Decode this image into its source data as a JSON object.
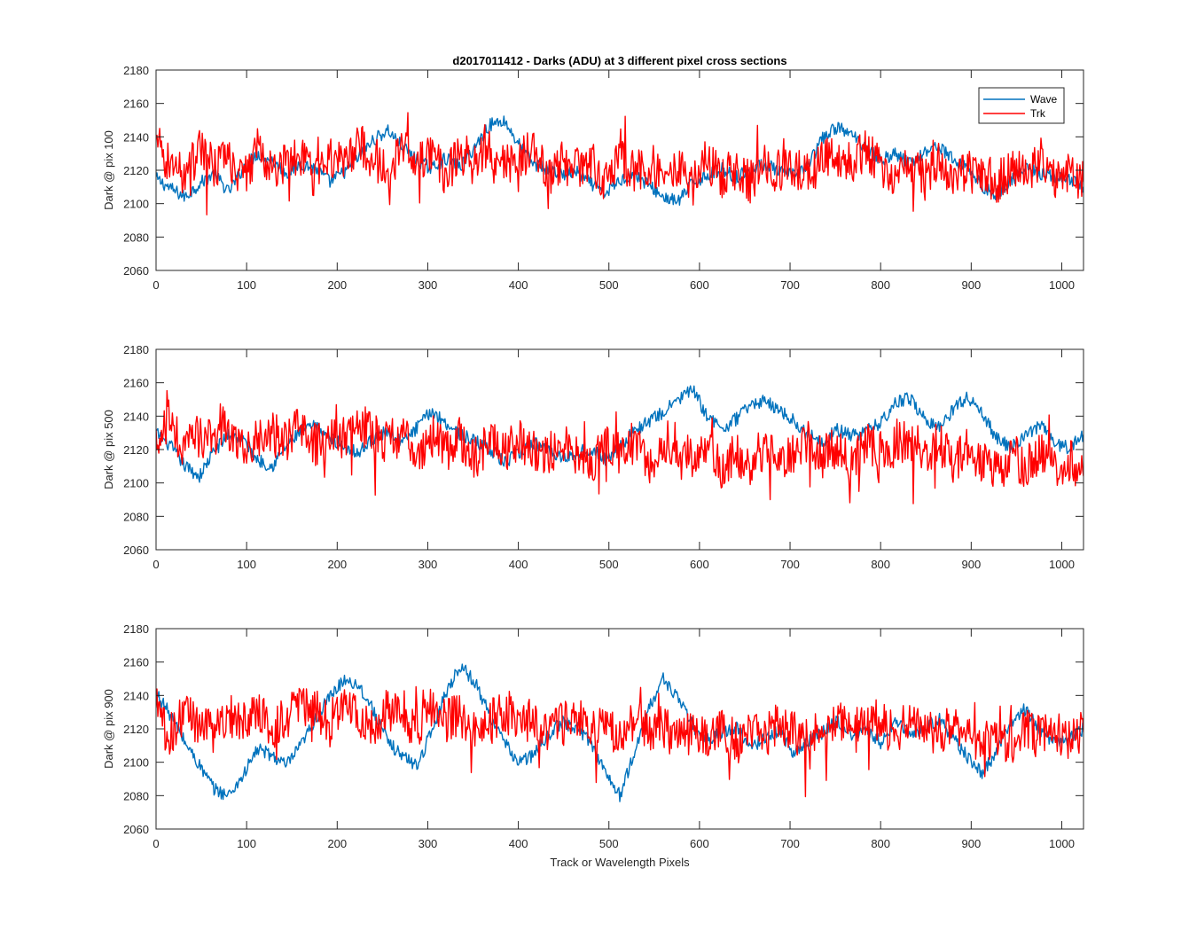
{
  "figure": {
    "title": "d2017011412 - Darks (ADU) at 3 different pixel cross sections",
    "xlabel": "Track or Wavelength Pixels"
  },
  "chart_data": [
    {
      "type": "line",
      "title": "d2017011412 - Darks (ADU) at 3 different pixel cross sections",
      "xlabel": "",
      "ylabel": "Dark @ pix 100",
      "xlim": [
        0,
        1024
      ],
      "ylim": [
        2060,
        2180
      ],
      "xticks": [
        0,
        100,
        200,
        300,
        400,
        500,
        600,
        700,
        800,
        900,
        1000
      ],
      "yticks": [
        2060,
        2080,
        2100,
        2120,
        2140,
        2160,
        2180
      ],
      "grid": false,
      "legend_position": "top-right",
      "series": [
        {
          "name": "Wave",
          "color": "#0072BD",
          "x": [
            0,
            16,
            32,
            48,
            64,
            80,
            96,
            112,
            128,
            144,
            160,
            176,
            192,
            208,
            224,
            240,
            256,
            272,
            288,
            304,
            320,
            336,
            352,
            368,
            384,
            400,
            416,
            432,
            448,
            464,
            480,
            496,
            512,
            528,
            544,
            560,
            576,
            592,
            608,
            624,
            640,
            656,
            672,
            688,
            704,
            720,
            736,
            752,
            768,
            784,
            800,
            816,
            832,
            848,
            864,
            880,
            896,
            912,
            928,
            944,
            960,
            976,
            992,
            1008,
            1024
          ],
          "values": [
            2115,
            2109,
            2104,
            2112,
            2118,
            2107,
            2121,
            2130,
            2126,
            2118,
            2124,
            2121,
            2113,
            2119,
            2128,
            2138,
            2144,
            2134,
            2126,
            2121,
            2127,
            2122,
            2134,
            2147,
            2150,
            2136,
            2124,
            2121,
            2117,
            2119,
            2112,
            2106,
            2114,
            2118,
            2111,
            2104,
            2101,
            2112,
            2117,
            2121,
            2116,
            2120,
            2124,
            2119,
            2117,
            2123,
            2139,
            2146,
            2141,
            2134,
            2126,
            2130,
            2124,
            2131,
            2135,
            2126,
            2122,
            2110,
            2105,
            2114,
            2121,
            2118,
            2116,
            2114,
            2110
          ]
        },
        {
          "name": "Trk",
          "color": "#FF0000",
          "x": [
            0,
            16,
            32,
            48,
            64,
            80,
            96,
            112,
            128,
            144,
            160,
            176,
            192,
            208,
            224,
            240,
            256,
            272,
            288,
            304,
            320,
            336,
            352,
            368,
            384,
            400,
            416,
            432,
            448,
            464,
            480,
            496,
            512,
            528,
            544,
            560,
            576,
            592,
            608,
            624,
            640,
            656,
            672,
            688,
            704,
            720,
            736,
            752,
            768,
            784,
            800,
            816,
            832,
            848,
            864,
            880,
            896,
            912,
            928,
            944,
            960,
            976,
            992,
            1008,
            1024
          ],
          "values": [
            2135,
            2124,
            2118,
            2132,
            2121,
            2127,
            2113,
            2134,
            2119,
            2125,
            2128,
            2114,
            2130,
            2122,
            2136,
            2127,
            2121,
            2133,
            2125,
            2130,
            2118,
            2129,
            2124,
            2136,
            2121,
            2128,
            2132,
            2117,
            2125,
            2120,
            2127,
            2114,
            2126,
            2119,
            2124,
            2118,
            2122,
            2111,
            2127,
            2116,
            2121,
            2113,
            2124,
            2119,
            2122,
            2117,
            2126,
            2129,
            2124,
            2132,
            2121,
            2118,
            2124,
            2116,
            2127,
            2113,
            2120,
            2117,
            2112,
            2121,
            2118,
            2123,
            2114,
            2120,
            2113
          ]
        }
      ]
    },
    {
      "type": "line",
      "title": "",
      "xlabel": "",
      "ylabel": "Dark @ pix 500",
      "xlim": [
        0,
        1024
      ],
      "ylim": [
        2060,
        2180
      ],
      "xticks": [
        0,
        100,
        200,
        300,
        400,
        500,
        600,
        700,
        800,
        900,
        1000
      ],
      "yticks": [
        2060,
        2080,
        2100,
        2120,
        2140,
        2160,
        2180
      ],
      "grid": false,
      "series": [
        {
          "name": "Wave",
          "color": "#0072BD",
          "x": [
            0,
            16,
            32,
            48,
            64,
            80,
            96,
            112,
            128,
            144,
            160,
            176,
            192,
            208,
            224,
            240,
            256,
            272,
            288,
            304,
            320,
            336,
            352,
            368,
            384,
            400,
            416,
            432,
            448,
            464,
            480,
            496,
            512,
            528,
            544,
            560,
            576,
            592,
            608,
            624,
            640,
            656,
            672,
            688,
            704,
            720,
            736,
            752,
            768,
            784,
            800,
            816,
            832,
            848,
            864,
            880,
            896,
            912,
            928,
            944,
            960,
            976,
            992,
            1008,
            1024
          ],
          "values": [
            2130,
            2122,
            2110,
            2104,
            2119,
            2129,
            2126,
            2114,
            2110,
            2122,
            2131,
            2134,
            2127,
            2122,
            2118,
            2127,
            2131,
            2124,
            2133,
            2143,
            2136,
            2129,
            2125,
            2121,
            2112,
            2117,
            2124,
            2121,
            2115,
            2118,
            2121,
            2114,
            2122,
            2131,
            2137,
            2142,
            2150,
            2156,
            2141,
            2132,
            2138,
            2147,
            2149,
            2144,
            2137,
            2129,
            2125,
            2132,
            2128,
            2131,
            2136,
            2148,
            2151,
            2139,
            2133,
            2144,
            2152,
            2141,
            2127,
            2121,
            2128,
            2135,
            2124,
            2121,
            2129
          ]
        },
        {
          "name": "Trk",
          "color": "#FF0000",
          "x": [
            0,
            16,
            32,
            48,
            64,
            80,
            96,
            112,
            128,
            144,
            160,
            176,
            192,
            208,
            224,
            240,
            256,
            272,
            288,
            304,
            320,
            336,
            352,
            368,
            384,
            400,
            416,
            432,
            448,
            464,
            480,
            496,
            512,
            528,
            544,
            560,
            576,
            592,
            608,
            624,
            640,
            656,
            672,
            688,
            704,
            720,
            736,
            752,
            768,
            784,
            800,
            816,
            832,
            848,
            864,
            880,
            896,
            912,
            928,
            944,
            960,
            976,
            992,
            1008,
            1024
          ],
          "values": [
            2128,
            2135,
            2120,
            2129,
            2124,
            2132,
            2118,
            2127,
            2131,
            2123,
            2135,
            2122,
            2129,
            2126,
            2138,
            2131,
            2124,
            2130,
            2118,
            2125,
            2121,
            2127,
            2114,
            2124,
            2119,
            2126,
            2121,
            2116,
            2124,
            2118,
            2113,
            2121,
            2117,
            2124,
            2112,
            2119,
            2122,
            2115,
            2120,
            2109,
            2117,
            2112,
            2121,
            2110,
            2118,
            2124,
            2116,
            2121,
            2113,
            2125,
            2119,
            2122,
            2127,
            2118,
            2124,
            2113,
            2120,
            2112,
            2107,
            2115,
            2110,
            2117,
            2108,
            2114,
            2104
          ]
        }
      ]
    },
    {
      "type": "line",
      "title": "",
      "xlabel": "Track or Wavelength Pixels",
      "ylabel": "Dark @ pix 900",
      "xlim": [
        0,
        1024
      ],
      "ylim": [
        2060,
        2180
      ],
      "xticks": [
        0,
        100,
        200,
        300,
        400,
        500,
        600,
        700,
        800,
        900,
        1000
      ],
      "yticks": [
        2060,
        2080,
        2100,
        2120,
        2140,
        2160,
        2180
      ],
      "grid": false,
      "series": [
        {
          "name": "Wave",
          "color": "#0072BD",
          "x": [
            0,
            16,
            32,
            48,
            64,
            80,
            96,
            112,
            128,
            144,
            160,
            176,
            192,
            208,
            224,
            240,
            256,
            272,
            288,
            304,
            320,
            336,
            352,
            368,
            384,
            400,
            416,
            432,
            448,
            464,
            480,
            496,
            512,
            528,
            544,
            560,
            576,
            592,
            608,
            624,
            640,
            656,
            672,
            688,
            704,
            720,
            736,
            752,
            768,
            784,
            800,
            816,
            832,
            848,
            864,
            880,
            896,
            912,
            928,
            944,
            960,
            976,
            992,
            1008,
            1024
          ],
          "values": [
            2142,
            2128,
            2112,
            2098,
            2084,
            2080,
            2092,
            2108,
            2104,
            2098,
            2110,
            2126,
            2139,
            2150,
            2146,
            2131,
            2112,
            2104,
            2098,
            2118,
            2142,
            2158,
            2148,
            2129,
            2112,
            2100,
            2104,
            2116,
            2124,
            2121,
            2112,
            2094,
            2080,
            2105,
            2132,
            2150,
            2139,
            2122,
            2113,
            2118,
            2121,
            2109,
            2114,
            2119,
            2106,
            2112,
            2118,
            2125,
            2116,
            2119,
            2112,
            2124,
            2118,
            2120,
            2126,
            2114,
            2103,
            2093,
            2106,
            2124,
            2132,
            2119,
            2112,
            2114,
            2120
          ]
        },
        {
          "name": "Trk",
          "color": "#FF0000",
          "x": [
            0,
            16,
            32,
            48,
            64,
            80,
            96,
            112,
            128,
            144,
            160,
            176,
            192,
            208,
            224,
            240,
            256,
            272,
            288,
            304,
            320,
            336,
            352,
            368,
            384,
            400,
            416,
            432,
            448,
            464,
            480,
            496,
            512,
            528,
            544,
            560,
            576,
            592,
            608,
            624,
            640,
            656,
            672,
            688,
            704,
            720,
            736,
            752,
            768,
            784,
            800,
            816,
            832,
            848,
            864,
            880,
            896,
            912,
            928,
            944,
            960,
            976,
            992,
            1008,
            1024
          ],
          "values": [
            2127,
            2116,
            2131,
            2122,
            2118,
            2129,
            2124,
            2133,
            2120,
            2127,
            2136,
            2131,
            2124,
            2137,
            2128,
            2121,
            2133,
            2126,
            2121,
            2132,
            2125,
            2129,
            2117,
            2124,
            2131,
            2122,
            2127,
            2116,
            2123,
            2129,
            2117,
            2121,
            2114,
            2125,
            2118,
            2121,
            2113,
            2119,
            2114,
            2123,
            2111,
            2118,
            2115,
            2124,
            2118,
            2113,
            2122,
            2127,
            2119,
            2129,
            2124,
            2118,
            2126,
            2121,
            2115,
            2125,
            2118,
            2112,
            2117,
            2111,
            2119,
            2115,
            2120,
            2113,
            2118
          ]
        }
      ]
    }
  ]
}
